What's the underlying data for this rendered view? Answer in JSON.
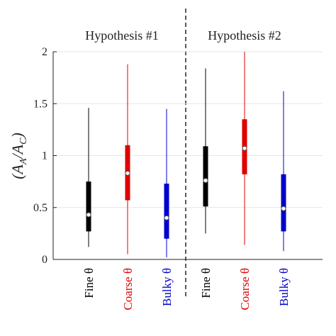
{
  "chart_data": {
    "type": "box",
    "groups": [
      "Hypothesis #1",
      "Hypothesis #2"
    ],
    "y_label": [
      "(A",
      "A",
      "/A",
      "C",
      ")"
    ],
    "categories": [
      "Fine θ",
      "Coarse θ",
      "Bulky θ",
      "Fine θ",
      "Coarse θ",
      "Bulky θ"
    ],
    "colors": [
      "#000000",
      "#e00000",
      "#0000cc",
      "#000000",
      "#e00000",
      "#0000cc"
    ],
    "whisker_low": [
      0.12,
      0.05,
      0.02,
      0.25,
      0.14,
      0.08
    ],
    "q1": [
      0.27,
      0.57,
      0.2,
      0.51,
      0.82,
      0.27
    ],
    "median": [
      0.43,
      0.83,
      0.4,
      0.76,
      1.07,
      0.49
    ],
    "q3": [
      0.75,
      1.1,
      0.73,
      1.09,
      1.35,
      0.82
    ],
    "whisker_high": [
      1.46,
      1.88,
      1.45,
      1.84,
      2.0,
      1.62
    ],
    "ylim": [
      0,
      2
    ],
    "yticks": [
      0,
      0.5,
      1,
      1.5,
      2
    ],
    "grid": true
  }
}
